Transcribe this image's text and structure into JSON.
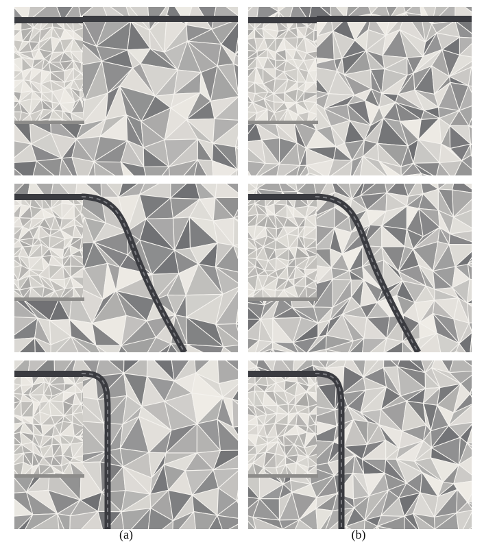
{
  "figure": {
    "captions": {
      "a": "(a)",
      "b": "(b)"
    },
    "panels": [
      {
        "id": "a1",
        "column": "a",
        "row": 1,
        "curve": "none"
      },
      {
        "id": "b1",
        "column": "b",
        "row": 1,
        "curve": "none"
      },
      {
        "id": "a2",
        "column": "a",
        "row": 2,
        "curve": "gentle"
      },
      {
        "id": "b2",
        "column": "b",
        "row": 2,
        "curve": "gentle"
      },
      {
        "id": "a3",
        "column": "a",
        "row": 3,
        "curve": "sharp"
      },
      {
        "id": "b3",
        "column": "b",
        "row": 3,
        "curve": "sharp"
      }
    ],
    "colors": {
      "mesh_edge": "#f4f2ee",
      "shade_light": "#efece6",
      "shade_mid": "#b9b8b6",
      "shade_dark": "#6f7073",
      "inner_block": "#dcdad4",
      "bar": "#3a3b40"
    }
  }
}
